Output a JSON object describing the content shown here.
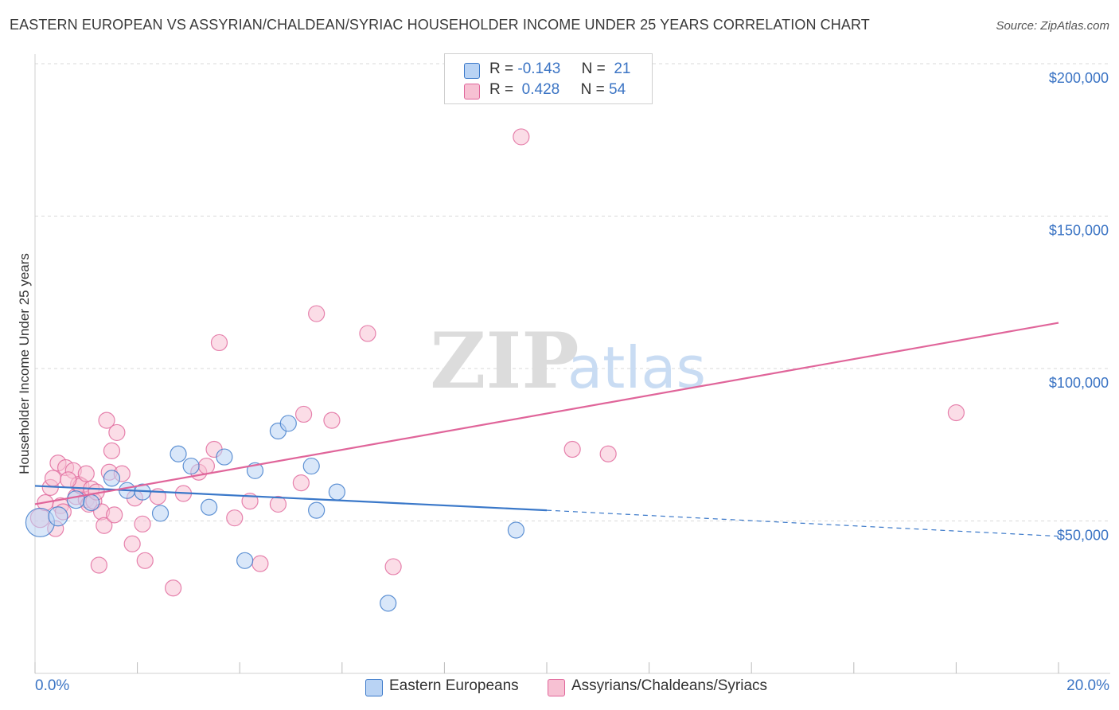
{
  "header": {
    "title": "EASTERN EUROPEAN VS ASSYRIAN/CHALDEAN/SYRIAC HOUSEHOLDER INCOME UNDER 25 YEARS CORRELATION CHART",
    "source": "Source: ZipAtlas.com"
  },
  "legend": {
    "rows": [
      {
        "r_label": "R =",
        "r_value": "-0.143",
        "n_label": "N =",
        "n_value": "21"
      },
      {
        "r_label": "R =",
        "r_value": "0.428",
        "n_label": "N =",
        "n_value": "54"
      }
    ],
    "series_names": [
      "Eastern Europeans",
      "Assyrians/Chaldeans/Syriacs"
    ]
  },
  "axis": {
    "x_min_label": "0.0%",
    "x_max_label": "20.0%",
    "y_ticks": [
      "$200,000",
      "$150,000",
      "$100,000",
      "$50,000"
    ],
    "y_label": "Householder Income Under 25 years"
  },
  "watermark": {
    "part1": "ZIP",
    "part2": "atlas"
  },
  "colors": {
    "blue": "#3a78c9",
    "blue_fill": "#b9d3f4",
    "pink": "#e0659a",
    "pink_fill": "#f7c1d3",
    "tick_text": "#3b74c4"
  },
  "chart_data": {
    "type": "scatter",
    "title": "EASTERN EUROPEAN VS ASSYRIAN/CHALDEAN/SYRIAC HOUSEHOLDER INCOME UNDER 25 YEARS CORRELATION CHART",
    "xlabel": "",
    "ylabel": "Householder Income Under 25 years",
    "xlim": [
      0,
      20
    ],
    "ylim": [
      0,
      200000
    ],
    "y_ticks": [
      50000,
      100000,
      150000,
      200000
    ],
    "series": [
      {
        "name": "Eastern Europeans",
        "color": "#3a78c9",
        "r": -0.143,
        "n": 21,
        "points": [
          [
            0.1,
            49500,
            18
          ],
          [
            0.45,
            51500,
            12
          ],
          [
            0.8,
            57000,
            11
          ],
          [
            1.1,
            56000,
            10
          ],
          [
            1.5,
            64000,
            10
          ],
          [
            1.8,
            60000,
            10
          ],
          [
            2.1,
            59500,
            10
          ],
          [
            2.45,
            52500,
            10
          ],
          [
            2.8,
            72000,
            10
          ],
          [
            3.05,
            68000,
            10
          ],
          [
            3.4,
            54500,
            10
          ],
          [
            3.7,
            71000,
            10
          ],
          [
            4.1,
            37000,
            10
          ],
          [
            4.3,
            66500,
            10
          ],
          [
            4.75,
            79500,
            10
          ],
          [
            4.95,
            82000,
            10
          ],
          [
            5.4,
            68000,
            10
          ],
          [
            5.5,
            53500,
            10
          ],
          [
            5.9,
            59500,
            10
          ],
          [
            6.9,
            23000,
            10
          ],
          [
            9.4,
            47000,
            10
          ]
        ],
        "trend": {
          "x0": 0,
          "y0": 61500,
          "x1": 10,
          "y1": 53500,
          "dash_x1": 20,
          "dash_y1": 45000
        }
      },
      {
        "name": "Assyrians/Chaldeans/Syriacs",
        "color": "#e0659a",
        "r": 0.428,
        "n": 54,
        "points": [
          [
            0.1,
            51000,
            12
          ],
          [
            0.2,
            56000,
            10
          ],
          [
            0.3,
            61000,
            10
          ],
          [
            0.35,
            64000,
            10
          ],
          [
            0.4,
            47500,
            10
          ],
          [
            0.45,
            69000,
            10
          ],
          [
            0.5,
            55000,
            10
          ],
          [
            0.55,
            53000,
            10
          ],
          [
            0.6,
            67500,
            10
          ],
          [
            0.75,
            66500,
            10
          ],
          [
            0.8,
            58000,
            10
          ],
          [
            0.85,
            62000,
            10
          ],
          [
            0.9,
            61500,
            10
          ],
          [
            1.0,
            57000,
            10
          ],
          [
            1.05,
            55500,
            10
          ],
          [
            1.1,
            60500,
            10
          ],
          [
            1.15,
            56500,
            10
          ],
          [
            1.2,
            59500,
            10
          ],
          [
            1.25,
            35500,
            10
          ],
          [
            1.3,
            53000,
            10
          ],
          [
            1.35,
            48500,
            10
          ],
          [
            1.4,
            83000,
            10
          ],
          [
            1.45,
            66000,
            10
          ],
          [
            1.5,
            73000,
            10
          ],
          [
            1.55,
            52000,
            10
          ],
          [
            1.6,
            79000,
            10
          ],
          [
            1.7,
            65500,
            10
          ],
          [
            1.9,
            42500,
            10
          ],
          [
            1.95,
            57500,
            10
          ],
          [
            2.1,
            49000,
            10
          ],
          [
            2.15,
            37000,
            10
          ],
          [
            2.4,
            58000,
            10
          ],
          [
            2.7,
            28000,
            10
          ],
          [
            2.9,
            59000,
            10
          ],
          [
            3.2,
            66000,
            10
          ],
          [
            3.35,
            68000,
            10
          ],
          [
            3.5,
            73500,
            10
          ],
          [
            3.6,
            108500,
            10
          ],
          [
            3.9,
            51000,
            10
          ],
          [
            4.2,
            56500,
            10
          ],
          [
            4.4,
            36000,
            10
          ],
          [
            4.75,
            55500,
            10
          ],
          [
            5.2,
            62500,
            10
          ],
          [
            5.25,
            85000,
            10
          ],
          [
            5.5,
            118000,
            10
          ],
          [
            5.8,
            83000,
            10
          ],
          [
            6.5,
            111500,
            10
          ],
          [
            7.0,
            35000,
            10
          ],
          [
            9.5,
            176000,
            10
          ],
          [
            10.5,
            73500,
            10
          ],
          [
            11.2,
            72000,
            10
          ],
          [
            18.0,
            85500,
            10
          ],
          [
            0.65,
            63500,
            10
          ],
          [
            1.0,
            65500,
            10
          ]
        ],
        "trend": {
          "x0": 0,
          "y0": 55500,
          "x1": 20,
          "y1": 115000
        }
      }
    ]
  }
}
